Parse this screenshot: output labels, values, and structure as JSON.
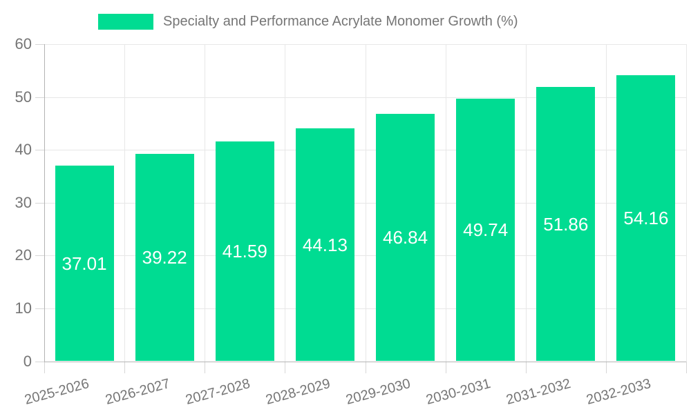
{
  "chart_data": {
    "type": "bar",
    "title": "",
    "legend": {
      "label": "Specialty and Performance Acrylate Monomer Growth (%)",
      "position": "top"
    },
    "categories": [
      "2025-2026",
      "2026-2027",
      "2027-2028",
      "2028-2029",
      "2029-2030",
      "2030-2031",
      "2031-2032",
      "2032-2033"
    ],
    "series": [
      {
        "name": "Specialty and Performance Acrylate Monomer Growth (%)",
        "values": [
          37.01,
          39.22,
          41.59,
          44.13,
          46.84,
          49.74,
          51.86,
          54.16
        ],
        "value_labels": [
          "37.01",
          "39.22",
          "41.59",
          "44.13",
          "46.84",
          "49.74",
          "51.86",
          "54.16"
        ]
      }
    ],
    "xlabel": "",
    "ylabel": "",
    "ylim": [
      0,
      60
    ],
    "yticks": [
      0,
      10,
      20,
      30,
      40,
      50,
      60
    ],
    "grid": true,
    "colors": {
      "bar": "#00DC92",
      "bar_label": "#ffffff",
      "axis_text": "#757575",
      "grid_line": "#e7e7e7",
      "tick_line": "#d6d6d6",
      "axis_line": "#b3b3b3",
      "background": "#ffffff"
    }
  }
}
